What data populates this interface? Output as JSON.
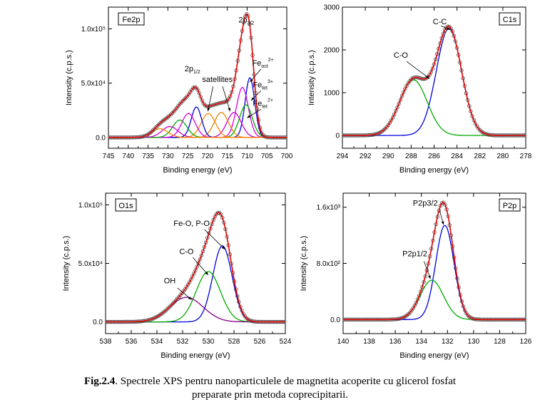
{
  "caption": {
    "label": "Fig.2.4",
    "text": ". Spectrele XPS pentru nanoparticulele de magnetita acoperite cu glicerol fosfat",
    "line2": "preparate prin metoda coprecipitarii."
  },
  "chart_data": [
    {
      "id": "fe2p",
      "type": "line",
      "title": "Fe2p",
      "xlabel": "Binding energy (eV)",
      "ylabel": "Intensity (c.p.s.)",
      "xlim": [
        745,
        700
      ],
      "ylim": [
        -10000,
        120000
      ],
      "xticks": [
        745,
        740,
        735,
        730,
        725,
        720,
        715,
        710,
        705,
        700
      ],
      "yticks": [
        {
          "value": 0,
          "label": "0.0"
        },
        {
          "value": 50000,
          "label": "5.0x10⁴"
        },
        {
          "value": 100000,
          "label": "1.0x10⁵"
        }
      ],
      "components": [
        {
          "center": 709.3,
          "height": 55000,
          "sigma": 1.2,
          "color": "#0000dd"
        },
        {
          "center": 711.2,
          "height": 46000,
          "sigma": 1.5,
          "color": "#dd00dd"
        },
        {
          "center": 710.3,
          "height": 30000,
          "sigma": 1.6,
          "color": "#00aa00"
        },
        {
          "center": 713.3,
          "height": 23000,
          "sigma": 1.8,
          "color": "#cc00cc"
        },
        {
          "center": 716.5,
          "height": 23000,
          "sigma": 1.8,
          "color": "#dd8800"
        },
        {
          "center": 719.8,
          "height": 22000,
          "sigma": 1.8,
          "color": "#ff8800"
        },
        {
          "center": 722.8,
          "height": 28000,
          "sigma": 1.3,
          "color": "#0000dd"
        },
        {
          "center": 724.8,
          "height": 22000,
          "sigma": 1.7,
          "color": "#dd00dd"
        },
        {
          "center": 727.0,
          "height": 16000,
          "sigma": 1.8,
          "color": "#00aa00"
        },
        {
          "center": 729.5,
          "height": 10000,
          "sigma": 2.0,
          "color": "#cc00cc"
        },
        {
          "center": 732.0,
          "height": 8000,
          "sigma": 2.0,
          "color": "#ff8800"
        }
      ],
      "annotations": [
        {
          "text": "2p",
          "sub": "3/2",
          "x": 710.2,
          "y": 106000
        },
        {
          "text": "2p",
          "sub": "1/2",
          "x": 723.8,
          "y": 61000
        },
        {
          "text": "satellites",
          "x": 717.5,
          "y": 51000
        },
        {
          "text": "Fe",
          "sub": "oct",
          "sup": "2+",
          "x": 706.0,
          "y": 66000
        },
        {
          "text": "Fe",
          "sub": "tet",
          "sup": "3+",
          "x": 706.0,
          "y": 46000
        },
        {
          "text": "Fe",
          "sub": "tet",
          "sup": "2+",
          "x": 706.0,
          "y": 29000
        }
      ],
      "arrows": [
        {
          "from": [
            718.6,
            47000
          ],
          "to": [
            719.9,
            24000
          ]
        },
        {
          "from": [
            716.2,
            47000
          ],
          "to": [
            714.3,
            24000
          ]
        },
        {
          "from": [
            706.5,
            63000
          ],
          "to": [
            709.3,
            51000
          ]
        },
        {
          "from": [
            706.5,
            43000
          ],
          "to": [
            709.0,
            34000
          ]
        },
        {
          "from": [
            706.5,
            26000
          ],
          "to": [
            710.0,
            18000
          ]
        }
      ]
    },
    {
      "id": "c1s",
      "type": "line",
      "title": "C1s",
      "xlabel": "Binding energy (eV)",
      "ylabel": "Intensity (c.p.s.)",
      "xlim": [
        294,
        278
      ],
      "ylim": [
        -300,
        3000
      ],
      "xticks": [
        294,
        292,
        290,
        288,
        286,
        284,
        282,
        280,
        278
      ],
      "yticks": [
        {
          "value": 0,
          "label": "0"
        },
        {
          "value": 1000,
          "label": "1000"
        },
        {
          "value": 2000,
          "label": "2000"
        },
        {
          "value": 3000,
          "label": "3000"
        }
      ],
      "components": [
        {
          "center": 284.7,
          "height": 2500,
          "sigma": 1.1,
          "color": "#0000dd"
        },
        {
          "center": 287.8,
          "height": 1300,
          "sigma": 1.2,
          "color": "#00aa00"
        }
      ],
      "annotations": [
        {
          "text": "C-C",
          "x": 285.5,
          "y": 2600
        },
        {
          "text": "C-O",
          "x": 288.9,
          "y": 1820
        }
      ],
      "arrows": [
        {
          "from": [
            285.4,
            2560
          ],
          "to": [
            284.6,
            2470
          ]
        },
        {
          "from": [
            288.4,
            1730
          ],
          "to": [
            286.4,
            1330
          ]
        }
      ]
    },
    {
      "id": "o1s",
      "type": "line",
      "title": "O1s",
      "xlabel": "Binding energy (eV)",
      "ylabel": "Intensity (c.p.s.)",
      "xlim": [
        538,
        524
      ],
      "ylim": [
        -10000,
        110000
      ],
      "xticks": [
        538,
        536,
        534,
        532,
        530,
        528,
        526,
        524
      ],
      "yticks": [
        {
          "value": 0,
          "label": "0.0"
        },
        {
          "value": 50000,
          "label": "5.0x10⁴"
        },
        {
          "value": 100000,
          "label": "1.0x10⁵"
        }
      ],
      "components": [
        {
          "center": 528.9,
          "height": 65000,
          "sigma": 0.75,
          "color": "#0000dd"
        },
        {
          "center": 530.0,
          "height": 43000,
          "sigma": 0.95,
          "color": "#00aa00"
        },
        {
          "center": 531.7,
          "height": 21000,
          "sigma": 1.3,
          "color": "#880088"
        }
      ],
      "annotations": [
        {
          "text": "Fe-O, P-O",
          "x": 531.3,
          "y": 82000
        },
        {
          "text": "C-O",
          "x": 531.7,
          "y": 58000
        },
        {
          "text": "OH",
          "x": 533.0,
          "y": 33000
        }
      ],
      "arrows": [
        {
          "from": [
            530.3,
            79000
          ],
          "to": [
            528.7,
            62000
          ]
        },
        {
          "from": [
            531.2,
            55000
          ],
          "to": [
            530.0,
            40000
          ]
        },
        {
          "from": [
            532.4,
            29000
          ],
          "to": [
            531.3,
            19000
          ]
        }
      ]
    },
    {
      "id": "p2p",
      "type": "line",
      "title": "P2p",
      "xlabel": "Binding energy (eV)",
      "ylabel": "Intensity (c.p.s.)",
      "xlim": [
        140,
        126
      ],
      "ylim": [
        -200,
        1800
      ],
      "xticks": [
        140,
        138,
        136,
        134,
        132,
        130,
        128,
        126
      ],
      "yticks": [
        {
          "value": 0,
          "label": "0.0"
        },
        {
          "value": 800,
          "label": "8.0x10²"
        },
        {
          "value": 1600,
          "label": "1.6x10³"
        }
      ],
      "components": [
        {
          "center": 132.2,
          "height": 1340,
          "sigma": 0.7,
          "color": "#0000dd"
        },
        {
          "center": 133.2,
          "height": 560,
          "sigma": 0.9,
          "color": "#00aa00"
        }
      ],
      "annotations": [
        {
          "text": "P2p3/2",
          "x": 133.7,
          "y": 1620
        },
        {
          "text": "P2p1/2",
          "x": 134.5,
          "y": 900
        }
      ],
      "arrows": [
        {
          "from": [
            132.6,
            1550
          ],
          "to": [
            132.3,
            1350
          ]
        },
        {
          "from": [
            133.8,
            830
          ],
          "to": [
            133.3,
            580
          ]
        }
      ]
    }
  ]
}
